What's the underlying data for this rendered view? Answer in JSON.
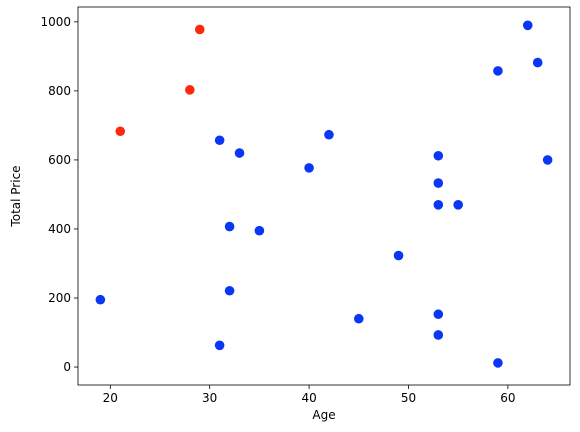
{
  "chart_data": {
    "type": "scatter",
    "xlabel": "Age",
    "ylabel": "Total Price",
    "xlim": [
      16.75,
      66.25
    ],
    "xticks": [
      20,
      30,
      40,
      50,
      60
    ],
    "ylim": [
      -52,
      1043
    ],
    "yticks": [
      0,
      200,
      400,
      600,
      800,
      1000
    ],
    "series": [
      {
        "color": "#0a36f5",
        "x": [
          19,
          31,
          33,
          32,
          35,
          32,
          31,
          40,
          42,
          45,
          49,
          53,
          53,
          53,
          55,
          53,
          53,
          59,
          59,
          62,
          63,
          64
        ],
        "values": [
          195,
          657,
          620,
          407,
          395,
          221,
          63,
          577,
          673,
          140,
          323,
          612,
          533,
          470,
          470,
          153,
          93,
          12,
          858,
          990,
          882,
          600
        ]
      },
      {
        "color": "#fb2a0c",
        "x": [
          29,
          28,
          21
        ],
        "values": [
          978,
          803,
          683
        ]
      }
    ]
  }
}
